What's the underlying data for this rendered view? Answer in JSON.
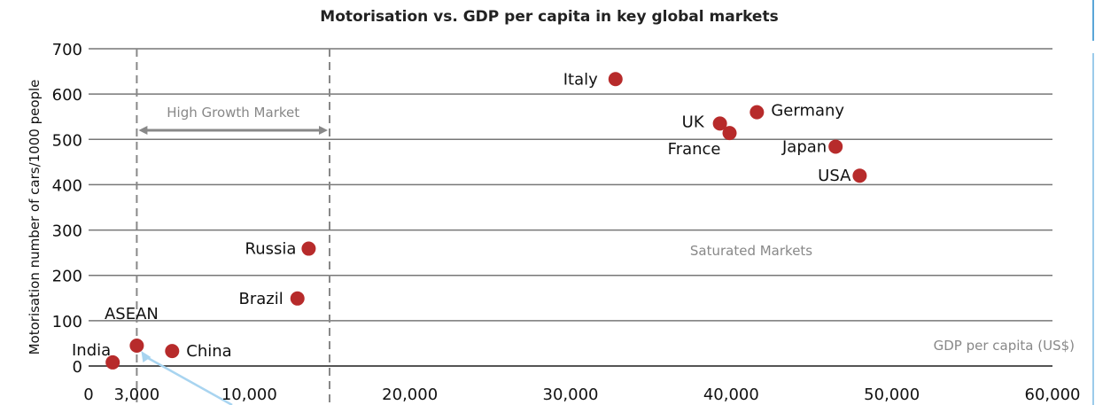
{
  "chart_data": {
    "type": "scatter",
    "title": "Motorisation vs. GDP per capita in key global markets",
    "xlabel": "GDP per capita (US$)",
    "ylabel": "Motorisation number of cars/1000 people",
    "xlim": [
      0,
      60000
    ],
    "ylim": [
      0,
      700
    ],
    "x_ticks": [
      {
        "value": 0,
        "label": "0"
      },
      {
        "value": 3000,
        "label": "3,000"
      },
      {
        "value": 10000,
        "label": "10,000"
      },
      {
        "value": 20000,
        "label": "20,000"
      },
      {
        "value": 30000,
        "label": "30,000"
      },
      {
        "value": 40000,
        "label": "40,000"
      },
      {
        "value": 50000,
        "label": "50,000"
      },
      {
        "value": 60000,
        "label": "60,000"
      }
    ],
    "y_ticks": [
      0,
      100,
      200,
      300,
      400,
      500,
      600,
      700
    ],
    "grid": "horizontal",
    "points": [
      {
        "label": "Italy",
        "x": 32800,
        "y": 633
      },
      {
        "label": "Germany",
        "x": 41600,
        "y": 560
      },
      {
        "label": "UK",
        "x": 39300,
        "y": 535
      },
      {
        "label": "France",
        "x": 39900,
        "y": 514
      },
      {
        "label": "Japan",
        "x": 46500,
        "y": 484
      },
      {
        "label": "USA",
        "x": 48000,
        "y": 420
      },
      {
        "label": "Russia",
        "x": 13700,
        "y": 259
      },
      {
        "label": "Brazil",
        "x": 13000,
        "y": 149
      },
      {
        "label": "ASEAN",
        "x": 3000,
        "y": 45
      },
      {
        "label": "China",
        "x": 5200,
        "y": 33
      },
      {
        "label": "India",
        "x": 1500,
        "y": 8
      }
    ],
    "regions": [
      {
        "label": "High Growth Market",
        "x_range": [
          3000,
          15000
        ]
      },
      {
        "label": "Saturated Markets"
      }
    ],
    "point_color": "#b72b2b",
    "arrow_color": "#a8d4f0"
  }
}
